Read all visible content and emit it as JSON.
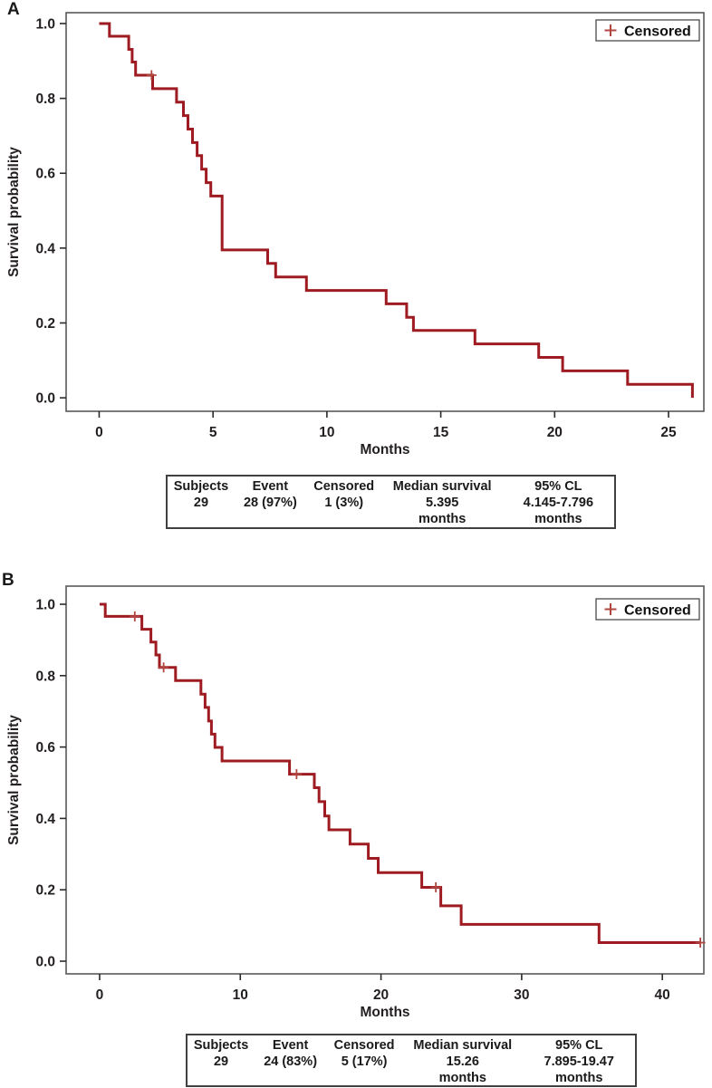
{
  "figure": {
    "description": "Kaplan-Meier survival curves, panels A and B"
  },
  "colors": {
    "curve": "#9e1c21",
    "censor_mark": "#b0463f",
    "frame": "#58595b",
    "tick": "#2a2a2a",
    "text": "#231f20",
    "legend_border": "#4a4a4a",
    "table_border": "#404040",
    "background": "#ffffff"
  },
  "chart_data": [
    {
      "type": "line",
      "subtype": "kaplan-meier-step",
      "panel_label": "A",
      "xlabel": "Months",
      "ylabel": "Survival probability",
      "legend_label": "Censored",
      "legend_position": "top-right",
      "grid": false,
      "xticks": [
        0,
        5,
        10,
        15,
        20,
        25
      ],
      "ytick_values": [
        1.0,
        0.8,
        0.6,
        0.4,
        0.2,
        0.0
      ],
      "ytick_labels": [
        "1.0",
        "0.8",
        "0.6",
        "0.4",
        "0.2",
        "0.0"
      ],
      "xlim": [
        -1.45,
        26.55
      ],
      "ylim": [
        -0.036,
        1.029
      ],
      "steps": [
        [
          0,
          1.0
        ],
        [
          0.45,
          0.966
        ],
        [
          1.3,
          0.931
        ],
        [
          1.45,
          0.897
        ],
        [
          1.6,
          0.862
        ],
        [
          2.35,
          0.826
        ],
        [
          3.4,
          0.79
        ],
        [
          3.7,
          0.754
        ],
        [
          3.9,
          0.718
        ],
        [
          4.1,
          0.682
        ],
        [
          4.3,
          0.647
        ],
        [
          4.5,
          0.611
        ],
        [
          4.7,
          0.575
        ],
        [
          4.9,
          0.539
        ],
        [
          5.4,
          0.395
        ],
        [
          7.4,
          0.359
        ],
        [
          7.75,
          0.323
        ],
        [
          9.1,
          0.287
        ],
        [
          12.6,
          0.251
        ],
        [
          13.5,
          0.215
        ],
        [
          13.8,
          0.18
        ],
        [
          16.5,
          0.144
        ],
        [
          19.3,
          0.108
        ],
        [
          20.35,
          0.072
        ],
        [
          23.2,
          0.036
        ],
        [
          26.05,
          0.0
        ]
      ],
      "censored": [
        [
          2.3,
          0.862
        ]
      ],
      "summary_table": {
        "headers": [
          "Subjects",
          "Event",
          "Censored",
          "Median survival",
          "95% CL"
        ],
        "values": [
          "29",
          "28 (97%)",
          "1 (3%)",
          "5.395",
          "4.145-7.796"
        ],
        "units": [
          "",
          "",
          "",
          "months",
          "months"
        ]
      }
    },
    {
      "type": "line",
      "subtype": "kaplan-meier-step",
      "panel_label": "B",
      "xlabel": "Months",
      "ylabel": "Survival probability",
      "legend_label": "Censored",
      "legend_position": "top-right",
      "grid": false,
      "xticks": [
        0,
        10,
        20,
        30,
        40
      ],
      "ytick_values": [
        1.0,
        0.8,
        0.6,
        0.4,
        0.2,
        0.0
      ],
      "ytick_labels": [
        "1.0",
        "0.8",
        "0.6",
        "0.4",
        "0.2",
        "0.0"
      ],
      "xlim": [
        -2.38,
        42.95
      ],
      "ylim": [
        -0.0355,
        1.0508
      ],
      "steps": [
        [
          0,
          1.0
        ],
        [
          0.4,
          0.966
        ],
        [
          3.0,
          0.93
        ],
        [
          3.65,
          0.894
        ],
        [
          4.0,
          0.858
        ],
        [
          4.25,
          0.823
        ],
        [
          5.4,
          0.786
        ],
        [
          7.2,
          0.748
        ],
        [
          7.5,
          0.711
        ],
        [
          7.75,
          0.673
        ],
        [
          7.95,
          0.636
        ],
        [
          8.2,
          0.599
        ],
        [
          8.7,
          0.561
        ],
        [
          13.5,
          0.524
        ],
        [
          15.26,
          0.486
        ],
        [
          15.6,
          0.447
        ],
        [
          16.0,
          0.407
        ],
        [
          16.3,
          0.368
        ],
        [
          17.8,
          0.328
        ],
        [
          19.1,
          0.288
        ],
        [
          19.8,
          0.248
        ],
        [
          22.9,
          0.207
        ],
        [
          24.25,
          0.155
        ],
        [
          25.7,
          0.103
        ],
        [
          35.5,
          0.052
        ],
        [
          42.7,
          0.052
        ]
      ],
      "censored": [
        [
          2.5,
          0.966
        ],
        [
          4.55,
          0.823
        ],
        [
          14.0,
          0.524
        ],
        [
          23.9,
          0.207
        ],
        [
          42.7,
          0.052
        ]
      ],
      "summary_table": {
        "headers": [
          "Subjects",
          "Event",
          "Censored",
          "Median survival",
          "95% CL"
        ],
        "values": [
          "29",
          "24 (83%)",
          "5 (17%)",
          "15.26",
          "7.895-19.47"
        ],
        "units": [
          "",
          "",
          "",
          "months",
          "months"
        ]
      }
    }
  ]
}
